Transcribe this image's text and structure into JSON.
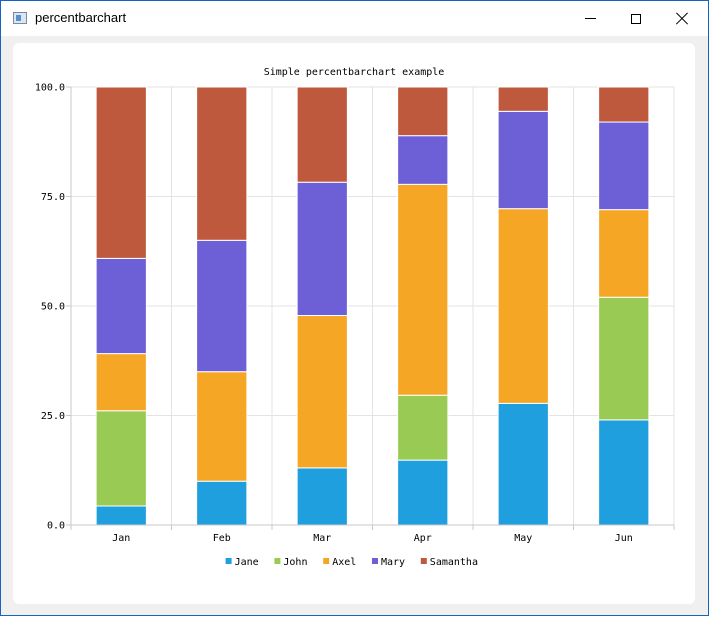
{
  "window": {
    "title": "percentbarchart"
  },
  "colors": {
    "Jane": "#209fdf",
    "John": "#99ca53",
    "Axel": "#f6a625",
    "Mary": "#6d5fd5",
    "Samantha": "#bf593e"
  },
  "chart_data": {
    "type": "bar",
    "stacking": "percent",
    "title": "Simple percentbarchart example",
    "categories": [
      "Jan",
      "Feb",
      "Mar",
      "Apr",
      "May",
      "Jun"
    ],
    "series": [
      {
        "name": "Jane",
        "values": [
          1,
          2,
          3,
          4,
          5,
          6
        ]
      },
      {
        "name": "John",
        "values": [
          5,
          0,
          0,
          4,
          0,
          7
        ]
      },
      {
        "name": "Axel",
        "values": [
          3,
          5,
          8,
          13,
          8,
          5
        ]
      },
      {
        "name": "Mary",
        "values": [
          5,
          6,
          7,
          3,
          4,
          5
        ]
      },
      {
        "name": "Samantha",
        "values": [
          9,
          7,
          5,
          3,
          1,
          2
        ]
      }
    ],
    "ylim": [
      0,
      100
    ],
    "yticks": [
      "0.0",
      "25.0",
      "50.0",
      "75.0",
      "100.0"
    ],
    "grid": true,
    "legend": "bottom"
  }
}
